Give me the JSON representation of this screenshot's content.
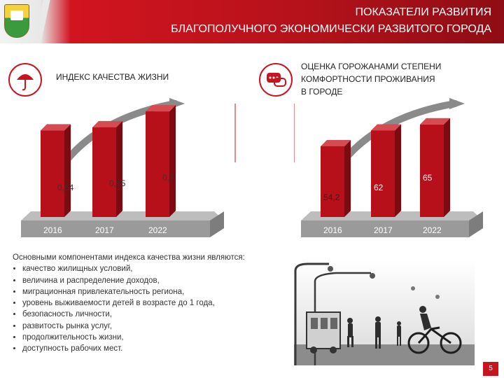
{
  "header": {
    "title_line1": "ПОКАЗАТЕЛИ РАЗВИТИЯ",
    "title_line2": "БЛАГОПОЛУЧНОГО ЭКОНОМИЧЕСКИ РАЗВИТОГО ГОРОДА"
  },
  "left_section": {
    "title": "ИНДЕКС КАЧЕСТВА ЖИЗНИ",
    "icon": "umbrella-icon"
  },
  "right_section": {
    "title_line1": "ОЦЕНКА ГОРОЖАНАМИ СТЕПЕНИ",
    "title_line2": "КОМФОРТНОСТИ ПРОЖИВАНИЯ",
    "title_line3": "В ГОРОДЕ",
    "icon": "chat-bubbles-icon"
  },
  "description": {
    "intro": "Основными компонентами индекса качества жизни являются:",
    "items": [
      "качество жилищных условий,",
      "величина и распределение доходов,",
      "миграционная привлекательность региона,",
      "уровень выживаемости детей в возрасте до 1 года,",
      "безопасность личности,",
      "развитость рынка услуг,",
      "продолжительность жизни,",
      "доступность рабочих мест."
    ]
  },
  "page_number": "5",
  "colors": {
    "accent": "#c8141e",
    "bar_front": "#b8101a",
    "bar_side": "#7c0a10",
    "platform": "#9a9a9a"
  },
  "chart_data": [
    {
      "type": "bar",
      "categories": [
        "2016",
        "2017",
        "2022"
      ],
      "values": [
        0.64,
        0.65,
        0.7
      ],
      "labels": [
        "0,64",
        "0,65",
        "0,7"
      ]
    },
    {
      "type": "bar",
      "categories": [
        "2016",
        "2017",
        "2022"
      ],
      "values": [
        54.2,
        62,
        65
      ],
      "labels": [
        "54,2",
        "62",
        "65"
      ]
    }
  ]
}
